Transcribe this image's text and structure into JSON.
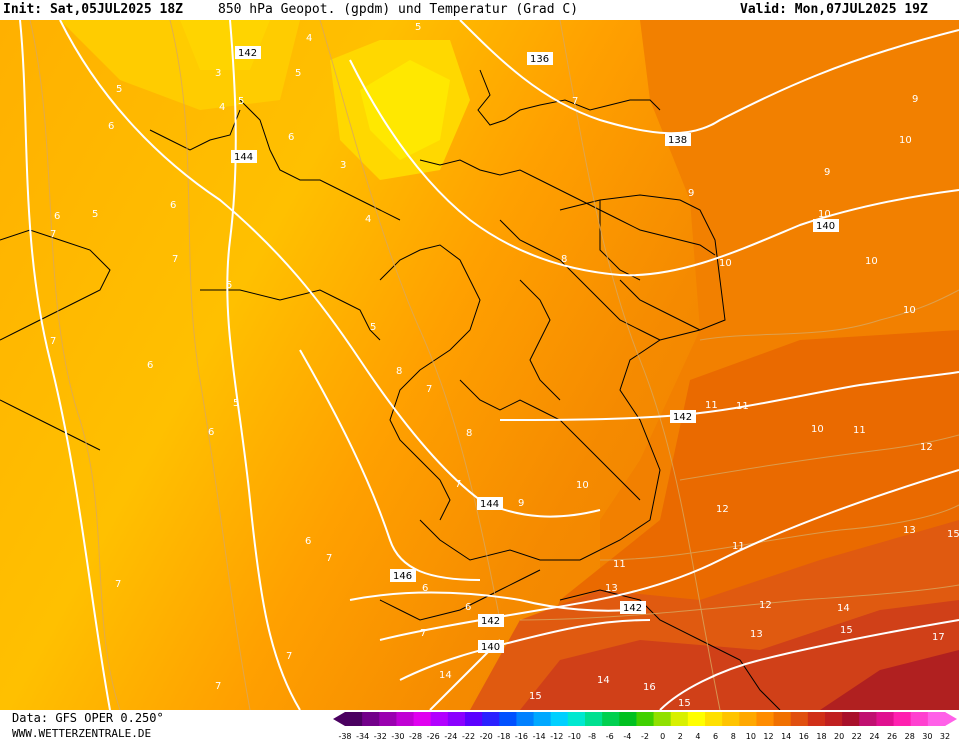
{
  "header": {
    "init": "Init: Sat,05JUL2025 18Z",
    "title": "850 hPa Geopot. (gpdm) und Temperatur (Grad C)",
    "valid": "Valid: Mon,07JUL2025 19Z"
  },
  "footer": {
    "data_source": "Data: GFS OPER 0.250°",
    "website": "WWW.WETTERZENTRALE.DE"
  },
  "colorbar": {
    "ticks": [
      "-38",
      "-34",
      "-32",
      "-30",
      "-28",
      "-26",
      "-24",
      "-22",
      "-20",
      "-18",
      "-16",
      "-14",
      "-12",
      "-10",
      "-8",
      "-6",
      "-4",
      "-2",
      "0",
      "2",
      "4",
      "6",
      "8",
      "10",
      "12",
      "14",
      "16",
      "18",
      "20",
      "22",
      "24",
      "26",
      "28",
      "30",
      "32"
    ],
    "colors": [
      "#4a0060",
      "#72008a",
      "#9a00b0",
      "#c000d4",
      "#e000f0",
      "#b200ff",
      "#8a00ff",
      "#5a00ff",
      "#2a20ff",
      "#0050ff",
      "#0080ff",
      "#00a8ff",
      "#00d0ff",
      "#00e8d0",
      "#00e090",
      "#00d050",
      "#00c020",
      "#40d000",
      "#90e000",
      "#d8f000",
      "#ffff00",
      "#ffe000",
      "#ffc400",
      "#ffa800",
      "#ff8c00",
      "#f07000",
      "#e05010",
      "#d03018",
      "#c02020",
      "#a8102a",
      "#c01070",
      "#e01090",
      "#ff20b0",
      "#ff40d0",
      "#ff60e8"
    ]
  },
  "map": {
    "temperature_labels": [
      {
        "text": "4"
      },
      {
        "text": "3"
      },
      {
        "text": "5"
      },
      {
        "text": "4"
      },
      {
        "text": "5"
      },
      {
        "text": "6"
      },
      {
        "text": "5"
      },
      {
        "text": "6"
      },
      {
        "text": "3"
      },
      {
        "text": "6"
      },
      {
        "text": "4"
      },
      {
        "text": "5"
      },
      {
        "text": "6"
      },
      {
        "text": "7"
      },
      {
        "text": "7"
      },
      {
        "text": "5"
      },
      {
        "text": "7"
      },
      {
        "text": "6"
      },
      {
        "text": "5"
      },
      {
        "text": "8"
      },
      {
        "text": "7"
      },
      {
        "text": "6"
      },
      {
        "text": "8"
      },
      {
        "text": "7"
      },
      {
        "text": "6"
      },
      {
        "text": "7"
      },
      {
        "text": "7"
      },
      {
        "text": "7"
      },
      {
        "text": "6"
      },
      {
        "text": "6"
      },
      {
        "text": "7"
      },
      {
        "text": "7"
      },
      {
        "text": "9"
      },
      {
        "text": "9"
      },
      {
        "text": "9"
      },
      {
        "text": "10"
      },
      {
        "text": "10"
      },
      {
        "text": "10"
      },
      {
        "text": "10"
      },
      {
        "text": "10"
      },
      {
        "text": "10"
      },
      {
        "text": "11"
      },
      {
        "text": "11"
      },
      {
        "text": "11"
      },
      {
        "text": "12"
      },
      {
        "text": "12"
      },
      {
        "text": "11"
      },
      {
        "text": "13"
      },
      {
        "text": "13"
      },
      {
        "text": "12"
      },
      {
        "text": "13"
      },
      {
        "text": "14"
      },
      {
        "text": "15"
      },
      {
        "text": "17"
      },
      {
        "text": "14"
      },
      {
        "text": "14"
      },
      {
        "text": "16"
      },
      {
        "text": "15"
      },
      {
        "text": "15"
      },
      {
        "text": "15"
      },
      {
        "text": "7"
      },
      {
        "text": "10"
      },
      {
        "text": "9"
      },
      {
        "text": "8"
      },
      {
        "text": "11"
      },
      {
        "text": "5"
      },
      {
        "text": "5"
      }
    ],
    "geopotential_labels": [
      {
        "text": "142"
      },
      {
        "text": "144"
      },
      {
        "text": "136"
      },
      {
        "text": "138"
      },
      {
        "text": "140"
      },
      {
        "text": "142"
      },
      {
        "text": "144"
      },
      {
        "text": "146"
      },
      {
        "text": "142"
      },
      {
        "text": "142"
      },
      {
        "text": "140"
      }
    ]
  }
}
